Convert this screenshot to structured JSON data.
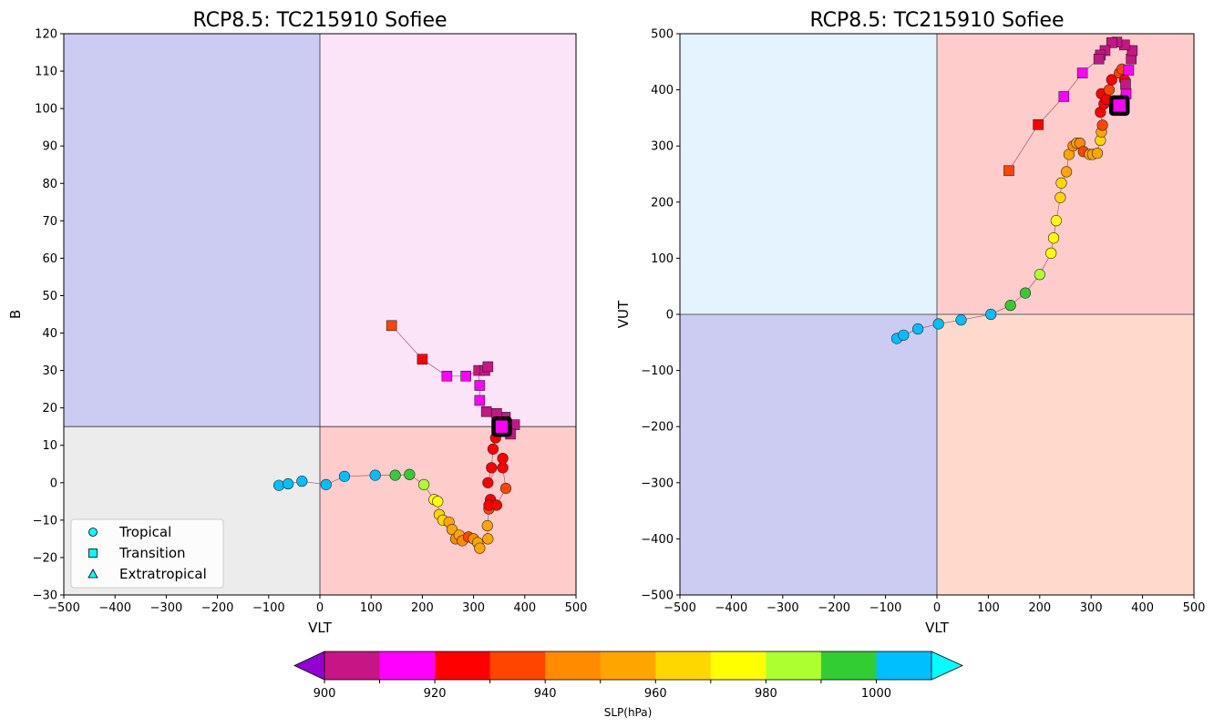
{
  "chart_data": [
    {
      "type": "scatter",
      "title": "RCP8.5: TC215910 Sofiee",
      "xlabel": "VLT",
      "ylabel": "B",
      "xlim": [
        -500,
        500
      ],
      "ylim": [
        -30,
        120
      ],
      "xticks": [
        -500,
        -400,
        -300,
        -200,
        -100,
        0,
        100,
        200,
        300,
        400,
        500
      ],
      "yticks": [
        -30,
        -20,
        -10,
        0,
        10,
        20,
        30,
        40,
        50,
        60,
        70,
        80,
        90,
        100,
        110,
        120
      ],
      "quadrant_split": {
        "x": 0,
        "y": 15
      },
      "quadrant_colors": {
        "upper_left": "#ccccf2",
        "upper_right": "#fbe3f8",
        "lower_left": "#ececec",
        "lower_right": "#ffcccc"
      },
      "legend": {
        "placement": "lower-left",
        "entries": [
          {
            "label": "Tropical",
            "marker": "circle"
          },
          {
            "label": "Transition",
            "marker": "square"
          },
          {
            "label": "Extratropical",
            "marker": "triangle"
          }
        ]
      },
      "points": [
        {
          "x": -80,
          "y": -0.7,
          "slp": 1005,
          "phase": "Tropical"
        },
        {
          "x": -62,
          "y": -0.3,
          "slp": 1005,
          "phase": "Tropical"
        },
        {
          "x": -35,
          "y": 0.4,
          "slp": 1005,
          "phase": "Tropical"
        },
        {
          "x": 12,
          "y": -0.5,
          "slp": 1005,
          "phase": "Tropical"
        },
        {
          "x": 48,
          "y": 1.7,
          "slp": 1005,
          "phase": "Tropical"
        },
        {
          "x": 108,
          "y": 2.0,
          "slp": 1004,
          "phase": "Tropical"
        },
        {
          "x": 147,
          "y": 2.0,
          "slp": 995,
          "phase": "Tropical"
        },
        {
          "x": 175,
          "y": 2.2,
          "slp": 995,
          "phase": "Tropical"
        },
        {
          "x": 203,
          "y": -0.5,
          "slp": 985,
          "phase": "Tropical"
        },
        {
          "x": 223,
          "y": -4.5,
          "slp": 975,
          "phase": "Tropical"
        },
        {
          "x": 230,
          "y": -5.0,
          "slp": 975,
          "phase": "Tropical"
        },
        {
          "x": 233,
          "y": -8.5,
          "slp": 965,
          "phase": "Tropical"
        },
        {
          "x": 240,
          "y": -10.0,
          "slp": 965,
          "phase": "Tropical"
        },
        {
          "x": 252,
          "y": -10.5,
          "slp": 955,
          "phase": "Tropical"
        },
        {
          "x": 258,
          "y": -12.5,
          "slp": 955,
          "phase": "Tropical"
        },
        {
          "x": 265,
          "y": -15.0,
          "slp": 945,
          "phase": "Tropical"
        },
        {
          "x": 272,
          "y": -14.0,
          "slp": 955,
          "phase": "Tropical"
        },
        {
          "x": 278,
          "y": -15.5,
          "slp": 945,
          "phase": "Tropical"
        },
        {
          "x": 290,
          "y": -14.5,
          "slp": 935,
          "phase": "Tropical"
        },
        {
          "x": 300,
          "y": -15.0,
          "slp": 945,
          "phase": "Tropical"
        },
        {
          "x": 308,
          "y": -16.0,
          "slp": 955,
          "phase": "Tropical"
        },
        {
          "x": 312,
          "y": -17.5,
          "slp": 955,
          "phase": "Tropical"
        },
        {
          "x": 328,
          "y": -15.0,
          "slp": 955,
          "phase": "Tropical"
        },
        {
          "x": 327,
          "y": -11.5,
          "slp": 955,
          "phase": "Tropical"
        },
        {
          "x": 330,
          "y": -7.0,
          "slp": 935,
          "phase": "Tropical"
        },
        {
          "x": 333,
          "y": -4.5,
          "slp": 925,
          "phase": "Tropical"
        },
        {
          "x": 330,
          "y": -6.0,
          "slp": 925,
          "phase": "Tropical"
        },
        {
          "x": 345,
          "y": -6.0,
          "slp": 925,
          "phase": "Tropical"
        },
        {
          "x": 363,
          "y": -1.5,
          "slp": 935,
          "phase": "Tropical"
        },
        {
          "x": 357,
          "y": 4.0,
          "slp": 925,
          "phase": "Tropical"
        },
        {
          "x": 357,
          "y": 6.5,
          "slp": 925,
          "phase": "Tropical"
        },
        {
          "x": 328,
          "y": 0.0,
          "slp": 925,
          "phase": "Tropical"
        },
        {
          "x": 335,
          "y": 4.0,
          "slp": 925,
          "phase": "Tropical"
        },
        {
          "x": 338,
          "y": 9.0,
          "slp": 925,
          "phase": "Tropical"
        },
        {
          "x": 343,
          "y": 12.0,
          "slp": 925,
          "phase": "Tropical"
        },
        {
          "x": 355,
          "y": 14.0,
          "slp": 925,
          "phase": "Tropical"
        },
        {
          "x": 350,
          "y": 16.0,
          "slp": 915,
          "phase": "Transition"
        },
        {
          "x": 362,
          "y": 17.5,
          "slp": 905,
          "phase": "Transition"
        },
        {
          "x": 380,
          "y": 15.5,
          "slp": 905,
          "phase": "Transition"
        },
        {
          "x": 372,
          "y": 13.0,
          "slp": 905,
          "phase": "Transition"
        },
        {
          "x": 345,
          "y": 18.5,
          "slp": 905,
          "phase": "Transition"
        },
        {
          "x": 325,
          "y": 19.0,
          "slp": 905,
          "phase": "Transition"
        },
        {
          "x": 312,
          "y": 22.0,
          "slp": 915,
          "phase": "Transition"
        },
        {
          "x": 312,
          "y": 26.0,
          "slp": 915,
          "phase": "Transition"
        },
        {
          "x": 310,
          "y": 30.0,
          "slp": 905,
          "phase": "Transition"
        },
        {
          "x": 322,
          "y": 30.0,
          "slp": 905,
          "phase": "Transition"
        },
        {
          "x": 328,
          "y": 31.0,
          "slp": 905,
          "phase": "Transition"
        },
        {
          "x": 285,
          "y": 28.5,
          "slp": 915,
          "phase": "Transition"
        },
        {
          "x": 248,
          "y": 28.5,
          "slp": 915,
          "phase": "Transition"
        },
        {
          "x": 200,
          "y": 33.0,
          "slp": 925,
          "phase": "Transition"
        },
        {
          "x": 140,
          "y": 42.0,
          "slp": 935,
          "phase": "Transition"
        },
        {
          "x": 355,
          "y": 15.0,
          "slp": 910,
          "phase": "Transition",
          "highlight": true
        }
      ]
    },
    {
      "type": "scatter",
      "title": "RCP8.5: TC215910 Sofiee",
      "xlabel": "VLT",
      "ylabel": "VUT",
      "xlim": [
        -500,
        500
      ],
      "ylim": [
        -500,
        500
      ],
      "xticks": [
        -500,
        -400,
        -300,
        -200,
        -100,
        0,
        100,
        200,
        300,
        400,
        500
      ],
      "yticks": [
        -500,
        -400,
        -300,
        -200,
        -100,
        0,
        100,
        200,
        300,
        400,
        500
      ],
      "quadrant_split": {
        "x": 0,
        "y": 0
      },
      "quadrant_colors": {
        "upper_left": "#e4f3fe",
        "upper_right": "#ffcccc",
        "lower_left": "#ccccf2",
        "lower_right": "#ffdacc"
      },
      "points": [
        {
          "x": -78,
          "y": -43,
          "slp": 1005,
          "phase": "Tropical"
        },
        {
          "x": -65,
          "y": -37,
          "slp": 1005,
          "phase": "Tropical"
        },
        {
          "x": -37,
          "y": -26,
          "slp": 1005,
          "phase": "Tropical"
        },
        {
          "x": 3,
          "y": -17,
          "slp": 1005,
          "phase": "Tropical"
        },
        {
          "x": 47,
          "y": -10,
          "slp": 1005,
          "phase": "Tropical"
        },
        {
          "x": 105,
          "y": 0,
          "slp": 1004,
          "phase": "Tropical"
        },
        {
          "x": 143,
          "y": 16,
          "slp": 995,
          "phase": "Tropical"
        },
        {
          "x": 172,
          "y": 38,
          "slp": 995,
          "phase": "Tropical"
        },
        {
          "x": 200,
          "y": 71,
          "slp": 985,
          "phase": "Tropical"
        },
        {
          "x": 222,
          "y": 109,
          "slp": 975,
          "phase": "Tropical"
        },
        {
          "x": 227,
          "y": 136,
          "slp": 975,
          "phase": "Tropical"
        },
        {
          "x": 232,
          "y": 167,
          "slp": 975,
          "phase": "Tropical"
        },
        {
          "x": 240,
          "y": 208,
          "slp": 965,
          "phase": "Tropical"
        },
        {
          "x": 242,
          "y": 234,
          "slp": 965,
          "phase": "Tropical"
        },
        {
          "x": 252,
          "y": 254,
          "slp": 955,
          "phase": "Tropical"
        },
        {
          "x": 257,
          "y": 285,
          "slp": 955,
          "phase": "Tropical"
        },
        {
          "x": 265,
          "y": 300,
          "slp": 945,
          "phase": "Tropical"
        },
        {
          "x": 272,
          "y": 305,
          "slp": 955,
          "phase": "Tropical"
        },
        {
          "x": 278,
          "y": 305,
          "slp": 945,
          "phase": "Tropical"
        },
        {
          "x": 285,
          "y": 290,
          "slp": 935,
          "phase": "Tropical"
        },
        {
          "x": 297,
          "y": 285,
          "slp": 955,
          "phase": "Tropical"
        },
        {
          "x": 303,
          "y": 285,
          "slp": 955,
          "phase": "Tropical"
        },
        {
          "x": 312,
          "y": 287,
          "slp": 955,
          "phase": "Tropical"
        },
        {
          "x": 318,
          "y": 310,
          "slp": 965,
          "phase": "Tropical"
        },
        {
          "x": 320,
          "y": 325,
          "slp": 955,
          "phase": "Tropical"
        },
        {
          "x": 322,
          "y": 337,
          "slp": 935,
          "phase": "Tropical"
        },
        {
          "x": 318,
          "y": 360,
          "slp": 925,
          "phase": "Tropical"
        },
        {
          "x": 325,
          "y": 375,
          "slp": 925,
          "phase": "Tropical"
        },
        {
          "x": 320,
          "y": 393,
          "slp": 925,
          "phase": "Tropical"
        },
        {
          "x": 330,
          "y": 383,
          "slp": 925,
          "phase": "Tropical"
        },
        {
          "x": 335,
          "y": 400,
          "slp": 935,
          "phase": "Tropical"
        },
        {
          "x": 340,
          "y": 418,
          "slp": 925,
          "phase": "Tropical"
        },
        {
          "x": 355,
          "y": 430,
          "slp": 935,
          "phase": "Tropical"
        },
        {
          "x": 360,
          "y": 437,
          "slp": 935,
          "phase": "Tropical"
        },
        {
          "x": 365,
          "y": 418,
          "slp": 925,
          "phase": "Tropical"
        },
        {
          "x": 352,
          "y": 373,
          "slp": 925,
          "phase": "Tropical"
        },
        {
          "x": 360,
          "y": 373,
          "slp": 915,
          "phase": "Transition"
        },
        {
          "x": 368,
          "y": 393,
          "slp": 915,
          "phase": "Transition"
        },
        {
          "x": 367,
          "y": 410,
          "slp": 905,
          "phase": "Transition"
        },
        {
          "x": 373,
          "y": 435,
          "slp": 915,
          "phase": "Transition"
        },
        {
          "x": 378,
          "y": 455,
          "slp": 905,
          "phase": "Transition"
        },
        {
          "x": 380,
          "y": 470,
          "slp": 905,
          "phase": "Transition"
        },
        {
          "x": 365,
          "y": 480,
          "slp": 905,
          "phase": "Transition"
        },
        {
          "x": 350,
          "y": 485,
          "slp": 905,
          "phase": "Transition"
        },
        {
          "x": 340,
          "y": 484,
          "slp": 905,
          "phase": "Transition"
        },
        {
          "x": 327,
          "y": 470,
          "slp": 905,
          "phase": "Transition"
        },
        {
          "x": 318,
          "y": 462,
          "slp": 905,
          "phase": "Transition"
        },
        {
          "x": 315,
          "y": 455,
          "slp": 905,
          "phase": "Transition"
        },
        {
          "x": 283,
          "y": 430,
          "slp": 915,
          "phase": "Transition"
        },
        {
          "x": 247,
          "y": 388,
          "slp": 915,
          "phase": "Transition"
        },
        {
          "x": 197,
          "y": 338,
          "slp": 925,
          "phase": "Transition"
        },
        {
          "x": 140,
          "y": 256,
          "slp": 935,
          "phase": "Transition"
        },
        {
          "x": 355,
          "y": 372,
          "slp": 910,
          "phase": "Transition",
          "highlight": true
        }
      ]
    }
  ],
  "colorbar": {
    "label": "SLP(hPa)",
    "tick_values": [
      900,
      920,
      940,
      960,
      980,
      1000
    ],
    "tick_labels": [
      "900",
      "920",
      "940",
      "960",
      "980",
      "1000"
    ],
    "levels": [
      900,
      910,
      920,
      930,
      940,
      950,
      960,
      970,
      980,
      990,
      1000,
      1010
    ],
    "colors": [
      "#c71585",
      "#ff00ff",
      "#ff0000",
      "#ff4500",
      "#ff8c00",
      "#ffa500",
      "#ffd700",
      "#ffff00",
      "#adff2f",
      "#32cd32",
      "#00bfff"
    ],
    "under_color": "#9400d3",
    "over_color": "#00ffff"
  }
}
